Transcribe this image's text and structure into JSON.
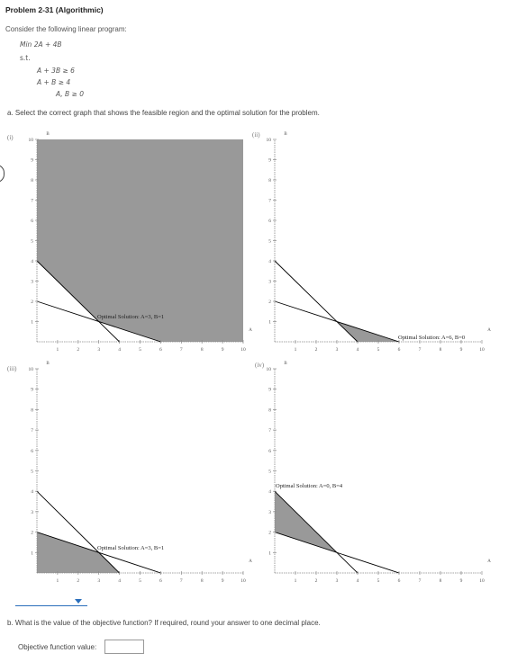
{
  "problem": {
    "title": "Problem 2-31 (Algorithmic)",
    "intro": "Consider the following linear program:",
    "objective": "Min  2A + 4B",
    "st": "s.t.",
    "constraints": [
      "A  + 3B   ≥ 6",
      "A  + B     ≥ 4",
      "A, B ≥ 0"
    ]
  },
  "part_a": {
    "question": "a. Select the correct graph that shows the feasible region and the optimal solution for the problem.",
    "select_value": ""
  },
  "graphs": [
    {
      "label": "(i)",
      "optimal_text": "Optimal Solution: A=3, B=1",
      "feasible": [
        [
          0,
          10
        ],
        [
          0,
          4
        ],
        [
          3,
          1
        ],
        [
          6,
          0
        ],
        [
          10,
          0
        ],
        [
          10,
          10
        ]
      ],
      "point": [
        3,
        1
      ]
    },
    {
      "label": "(ii)",
      "optimal_text": "Optimal Solution: A=6, B=0",
      "feasible": [
        [
          3,
          1
        ],
        [
          6,
          0
        ],
        [
          4,
          0
        ]
      ],
      "point": [
        6,
        0
      ]
    },
    {
      "label": "(iii)",
      "optimal_text": "Optimal Solution: A=3, B=1",
      "feasible": [
        [
          0,
          0
        ],
        [
          0,
          2
        ],
        [
          3,
          1
        ],
        [
          4,
          0
        ]
      ],
      "point": [
        3,
        1
      ]
    },
    {
      "label": "(iv)",
      "optimal_text": "Optimal Solution: A=0, B=4",
      "feasible": [
        [
          0,
          4
        ],
        [
          0,
          2
        ],
        [
          3,
          1
        ]
      ],
      "point": [
        0,
        4
      ]
    }
  ],
  "axes": {
    "x_label": "A",
    "y_label": "B",
    "x_ticks": [
      "1",
      "2",
      "3",
      "4",
      "5",
      "6",
      "7",
      "8",
      "9",
      "10"
    ],
    "y_ticks": [
      "1",
      "2",
      "3",
      "4",
      "5",
      "6",
      "7",
      "8",
      "9",
      "10"
    ],
    "range": [
      0,
      10
    ]
  },
  "constraint_lines": [
    {
      "from": [
        0,
        4
      ],
      "to": [
        4,
        0
      ]
    },
    {
      "from": [
        0,
        2
      ],
      "to": [
        6,
        0
      ]
    }
  ],
  "colors": {
    "feasible": "#999999",
    "line": "#000000",
    "axis": "#888888",
    "select": "#2a6ebb"
  },
  "part_b": {
    "question": "b. What is the value of the objective function? If required, round your answer to one decimal place.",
    "input_label": "Objective function value:",
    "input_value": ""
  }
}
